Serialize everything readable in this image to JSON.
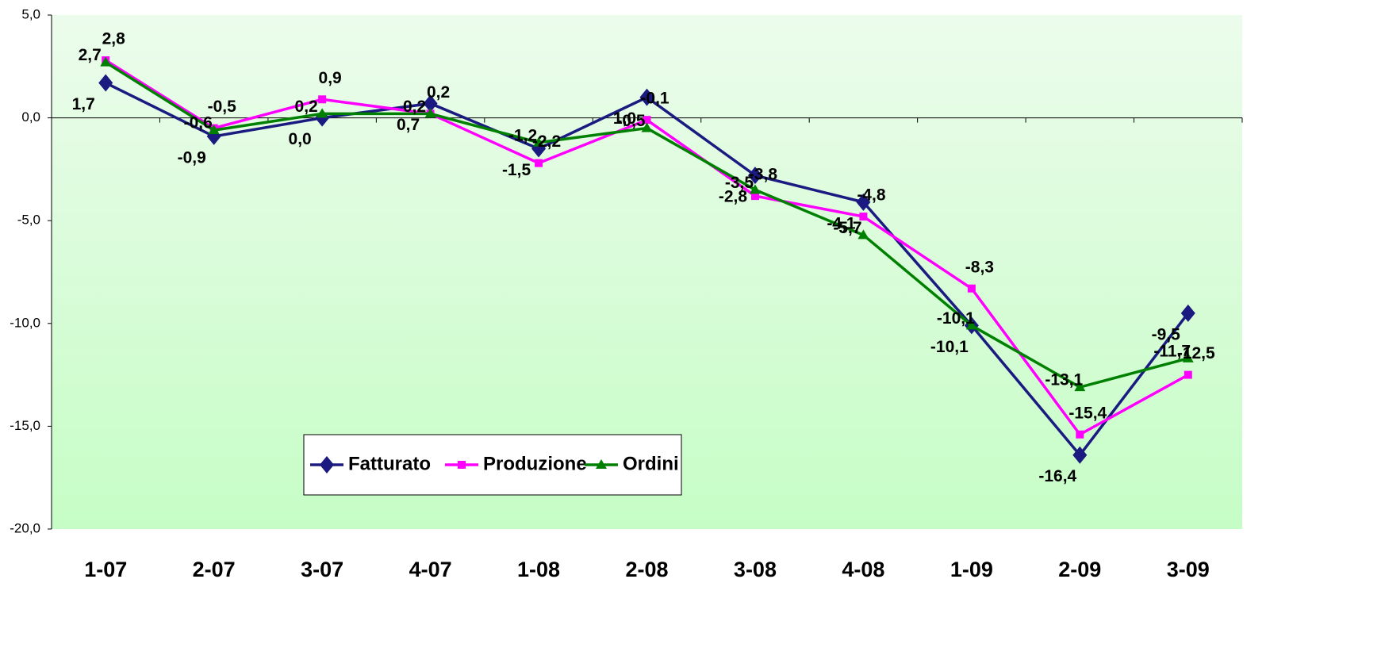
{
  "chart_data": {
    "type": "line",
    "categories": [
      "1-07",
      "2-07",
      "3-07",
      "4-07",
      "1-08",
      "2-08",
      "3-08",
      "4-08",
      "1-09",
      "2-09",
      "3-09"
    ],
    "series": [
      {
        "name": "Fatturato",
        "color": "#1a1a80",
        "marker": "diamond",
        "values": [
          1.7,
          -0.9,
          0.0,
          0.7,
          -1.5,
          1.0,
          -2.8,
          -4.1,
          -10.1,
          -16.4,
          -9.5
        ],
        "value_labels": [
          "1,7",
          "-0,9",
          "0,0",
          "0,7",
          "-1,5",
          "1,0",
          "-2,8",
          "-4,1",
          "-10,1",
          "-16,4",
          "-9,5"
        ]
      },
      {
        "name": "Produzione",
        "color": "#ff00ff",
        "marker": "square",
        "values": [
          2.8,
          -0.5,
          0.9,
          0.2,
          -2.2,
          -0.1,
          -3.8,
          -4.8,
          -8.3,
          -15.4,
          -12.5
        ],
        "value_labels": [
          "2,8",
          "-0,5",
          "0,9",
          "0,2",
          "-2,2",
          "-0,1",
          "-3,8",
          "-4,8",
          "-8,3",
          "-15,4",
          "-12,5"
        ]
      },
      {
        "name": "Ordini",
        "color": "#008000",
        "marker": "triangle",
        "values": [
          2.7,
          -0.6,
          0.2,
          0.2,
          -1.2,
          -0.5,
          -3.5,
          -5.7,
          -10.1,
          -13.1,
          -11.7
        ],
        "value_labels": [
          "2,7",
          "-0,6",
          "0,2",
          "0,2",
          "-1,2",
          "-0,5",
          "-3,5",
          "-5,7",
          "-10,1",
          "-13,1",
          "-11,7"
        ]
      }
    ],
    "ylim": [
      -20,
      5
    ],
    "yticks": [
      {
        "value": -20,
        "label": "-20,0"
      },
      {
        "value": -15,
        "label": "-15,0"
      },
      {
        "value": -10,
        "label": "-10,0"
      },
      {
        "value": -5,
        "label": "-5,0"
      },
      {
        "value": 0,
        "label": "0,0"
      },
      {
        "value": 5,
        "label": "5,0"
      }
    ],
    "legend": "lower left"
  }
}
